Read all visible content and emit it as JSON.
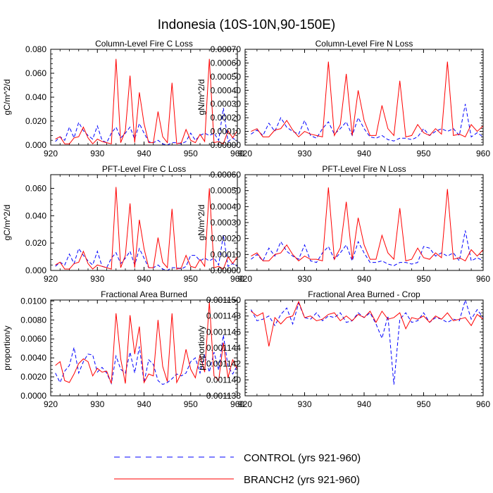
{
  "title": "Indonesia (10S-10N,90-150E)",
  "legend": [
    {
      "label": "CONTROL (yrs 921-960)",
      "color": "#0000ff",
      "style": "dashed"
    },
    {
      "label": "BRANCH2 (yrs 921-960)",
      "color": "#ff0000",
      "style": "solid"
    }
  ],
  "chart_data": [
    {
      "type": "line",
      "title": "Column-Level Fire C Loss",
      "xlabel": "",
      "ylabel": "gC/m^2/d",
      "xlim": [
        920,
        960
      ],
      "ylim": [
        0,
        0.08
      ],
      "xticks": [
        920,
        930,
        940,
        950,
        960
      ],
      "xtick_labels": [
        "920",
        "930",
        "940",
        "950",
        "960"
      ],
      "yticks": [
        0,
        0.02,
        0.04,
        0.06,
        0.08
      ],
      "ytick_labels": [
        "0.000",
        "0.020",
        "0.040",
        "0.060",
        "0.080"
      ],
      "x": [
        921,
        922,
        923,
        924,
        925,
        926,
        927,
        928,
        929,
        930,
        931,
        932,
        933,
        934,
        935,
        936,
        937,
        938,
        939,
        940,
        941,
        942,
        943,
        944,
        945,
        946,
        947,
        948,
        949,
        950,
        951,
        952,
        953,
        954,
        955,
        956,
        957,
        958,
        959,
        960
      ],
      "series": [
        {
          "name": "CONTROL (yrs 921-960)",
          "color": "#0000ff",
          "dash": true,
          "values": [
            0.003,
            0.007,
            0.004,
            0.015,
            0.006,
            0.019,
            0.012,
            0.008,
            0.005,
            0.016,
            0.004,
            0.002,
            0.01,
            0.015,
            0.006,
            0.01,
            0.015,
            0.005,
            0.018,
            0.01,
            0.003,
            0.002,
            0.004,
            0.001,
            0.0,
            0.002,
            0.002,
            0.001,
            0.003,
            0.01,
            0.004,
            0.008,
            0.01,
            0.008,
            0.01,
            0.004,
            0.031,
            0.003,
            0.006,
            0.003
          ]
        },
        {
          "name": "BRANCH2 (yrs 921-960)",
          "color": "#ff0000",
          "dash": false,
          "values": [
            0.005,
            0.007,
            0.001,
            0.001,
            0.006,
            0.007,
            0.015,
            0.006,
            0.001,
            0.005,
            0.003,
            0.002,
            0.001,
            0.072,
            0.002,
            0.012,
            0.058,
            0.002,
            0.044,
            0.018,
            0.002,
            0.002,
            0.028,
            0.007,
            0.002,
            0.052,
            0.001,
            0.002,
            0.013,
            0.004,
            0.002,
            0.009,
            0.003,
            0.072,
            0.002,
            0.003,
            0.001,
            0.012,
            0.006,
            0.012
          ]
        }
      ]
    },
    {
      "type": "line",
      "title": "Column-Level Fire N Loss",
      "xlabel": "",
      "ylabel": "gN/m^2/d",
      "xlim": [
        920,
        960
      ],
      "ylim": [
        0,
        0.0007
      ],
      "xticks": [
        920,
        930,
        940,
        950,
        960
      ],
      "xtick_labels": [
        "920",
        "930",
        "940",
        "950",
        "960"
      ],
      "yticks": [
        0,
        0.0001,
        0.0002,
        0.0003,
        0.0004,
        0.0005,
        0.0006,
        0.0007
      ],
      "ytick_labels": [
        "0.00000",
        "0.00010",
        "0.00020",
        "0.00030",
        "0.00040",
        "0.00050",
        "0.00060",
        "0.00070"
      ],
      "x": [
        921,
        922,
        923,
        924,
        925,
        926,
        927,
        928,
        929,
        930,
        931,
        932,
        933,
        934,
        935,
        936,
        937,
        938,
        939,
        940,
        941,
        942,
        943,
        944,
        945,
        946,
        947,
        948,
        949,
        950,
        951,
        952,
        953,
        954,
        955,
        956,
        957,
        958,
        959,
        960
      ],
      "series": [
        {
          "name": "CONTROL (yrs 921-960)",
          "color": "#0000ff",
          "dash": true,
          "values": [
            8e-05,
            0.00011,
            7e-05,
            0.00016,
            0.0001,
            0.0002,
            0.00013,
            0.0001,
            8e-05,
            0.00018,
            7e-05,
            5e-05,
            0.00012,
            0.00017,
            8e-05,
            0.00012,
            0.00017,
            7e-05,
            0.0002,
            0.00012,
            6e-05,
            5e-05,
            7e-05,
            4e-05,
            3e-05,
            5e-05,
            5e-05,
            4e-05,
            6e-05,
            0.00012,
            7e-05,
            0.0001,
            0.00012,
            0.0001,
            0.00012,
            7e-05,
            0.0003,
            6e-05,
            9e-05,
            6e-05
          ]
        },
        {
          "name": "BRANCH2 (yrs 921-960)",
          "color": "#ff0000",
          "dash": false,
          "values": [
            0.0001,
            0.00012,
            6e-05,
            6e-05,
            0.00011,
            0.00012,
            0.00018,
            0.00011,
            6e-05,
            0.0001,
            8e-05,
            7e-05,
            6e-05,
            0.00061,
            7e-05,
            0.00015,
            0.00052,
            7e-05,
            0.0004,
            0.00018,
            7e-05,
            7e-05,
            0.00029,
            0.00012,
            7e-05,
            0.00047,
            6e-05,
            7e-05,
            0.00015,
            9e-05,
            7e-05,
            0.00012,
            8e-05,
            0.00061,
            7e-05,
            8e-05,
            6e-05,
            0.00015,
            0.0001,
            0.00014
          ]
        }
      ]
    },
    {
      "type": "line",
      "title": "PFT-Level Fire C Loss",
      "xlabel": "",
      "ylabel": "gC/m^2/d",
      "xlim": [
        920,
        960
      ],
      "ylim": [
        0,
        0.07
      ],
      "xticks": [
        920,
        930,
        940,
        950,
        960
      ],
      "xtick_labels": [
        "920",
        "930",
        "940",
        "950",
        "960"
      ],
      "yticks": [
        0,
        0.02,
        0.04,
        0.06
      ],
      "ytick_labels": [
        "0.000",
        "0.020",
        "0.040",
        "0.060"
      ],
      "x": [
        921,
        922,
        923,
        924,
        925,
        926,
        927,
        928,
        929,
        930,
        931,
        932,
        933,
        934,
        935,
        936,
        937,
        938,
        939,
        940,
        941,
        942,
        943,
        944,
        945,
        946,
        947,
        948,
        949,
        950,
        951,
        952,
        953,
        954,
        955,
        956,
        957,
        958,
        959,
        960
      ],
      "series": [
        {
          "name": "CONTROL (yrs 921-960)",
          "color": "#0000ff",
          "dash": true,
          "values": [
            0.003,
            0.006,
            0.004,
            0.012,
            0.005,
            0.016,
            0.011,
            0.007,
            0.004,
            0.014,
            0.003,
            0.002,
            0.009,
            0.013,
            0.005,
            0.009,
            0.014,
            0.004,
            0.016,
            0.009,
            0.002,
            0.002,
            0.004,
            0.001,
            0.0,
            0.002,
            0.002,
            0.001,
            0.003,
            0.011,
            0.011,
            0.007,
            0.009,
            0.007,
            0.009,
            0.004,
            0.026,
            0.003,
            0.005,
            0.003
          ]
        },
        {
          "name": "BRANCH2 (yrs 921-960)",
          "color": "#ff0000",
          "dash": false,
          "values": [
            0.004,
            0.006,
            0.001,
            0.001,
            0.005,
            0.006,
            0.014,
            0.005,
            0.001,
            0.004,
            0.003,
            0.002,
            0.001,
            0.061,
            0.002,
            0.011,
            0.049,
            0.002,
            0.037,
            0.016,
            0.002,
            0.002,
            0.024,
            0.006,
            0.002,
            0.045,
            0.001,
            0.002,
            0.011,
            0.003,
            0.002,
            0.008,
            0.003,
            0.06,
            0.002,
            0.003,
            0.001,
            0.01,
            0.005,
            0.01
          ]
        }
      ]
    },
    {
      "type": "line",
      "title": "PFT-Level Fire N Loss",
      "xlabel": "",
      "ylabel": "gN/m^2/d",
      "xlim": [
        920,
        960
      ],
      "ylim": [
        0,
        0.0006
      ],
      "xticks": [
        920,
        930,
        940,
        950,
        960
      ],
      "xtick_labels": [
        "920",
        "930",
        "940",
        "950",
        "960"
      ],
      "yticks": [
        0,
        0.0001,
        0.0002,
        0.0003,
        0.0004,
        0.0005,
        0.0006
      ],
      "ytick_labels": [
        "0.00000",
        "0.00010",
        "0.00020",
        "0.00030",
        "0.00040",
        "0.00050",
        "0.00060"
      ],
      "x": [
        921,
        922,
        923,
        924,
        925,
        926,
        927,
        928,
        929,
        930,
        931,
        932,
        933,
        934,
        935,
        936,
        937,
        938,
        939,
        940,
        941,
        942,
        943,
        944,
        945,
        946,
        947,
        948,
        949,
        950,
        951,
        952,
        953,
        954,
        955,
        956,
        957,
        958,
        959,
        960
      ],
      "series": [
        {
          "name": "CONTROL (yrs 921-960)",
          "color": "#0000ff",
          "dash": true,
          "values": [
            7e-05,
            0.0001,
            6e-05,
            0.00014,
            9e-05,
            0.00018,
            0.00012,
            9e-05,
            7e-05,
            0.00016,
            6e-05,
            5e-05,
            0.00011,
            0.00015,
            7e-05,
            0.00011,
            0.00016,
            6e-05,
            0.00018,
            0.00011,
            5e-05,
            5e-05,
            6e-05,
            4e-05,
            3e-05,
            5e-05,
            5e-05,
            4e-05,
            5e-05,
            0.00015,
            0.00014,
            9e-05,
            0.00011,
            9e-05,
            0.00011,
            6e-05,
            0.00025,
            6e-05,
            8e-05,
            6e-05
          ]
        },
        {
          "name": "BRANCH2 (yrs 921-960)",
          "color": "#ff0000",
          "dash": false,
          "values": [
            9e-05,
            0.00011,
            6e-05,
            6e-05,
            0.0001,
            0.00011,
            0.00016,
            0.0001,
            6e-05,
            9e-05,
            7e-05,
            7e-05,
            6e-05,
            0.00052,
            7e-05,
            0.00014,
            0.00043,
            7e-05,
            0.00033,
            0.00016,
            7e-05,
            7e-05,
            0.00022,
            0.00011,
            7e-05,
            0.00039,
            6e-05,
            7e-05,
            0.00014,
            8e-05,
            7e-05,
            0.00011,
            8e-05,
            0.00051,
            7e-05,
            8e-05,
            6e-05,
            0.00013,
            9e-05,
            0.00013
          ]
        }
      ]
    },
    {
      "type": "line",
      "title": "Fractional Area Burned",
      "xlabel": "",
      "ylabel": "proportion/y",
      "xlim": [
        920,
        960
      ],
      "ylim": [
        0,
        0.0101
      ],
      "xticks": [
        920,
        930,
        940,
        950,
        960
      ],
      "xtick_labels": [
        "920",
        "930",
        "940",
        "950",
        "960"
      ],
      "yticks": [
        0,
        0.002,
        0.004,
        0.006,
        0.008,
        0.01
      ],
      "ytick_labels": [
        "0.0000",
        "0.0020",
        "0.0040",
        "0.0060",
        "0.0080",
        "0.0100"
      ],
      "x": [
        921,
        922,
        923,
        924,
        925,
        926,
        927,
        928,
        929,
        930,
        931,
        932,
        933,
        934,
        935,
        936,
        937,
        938,
        939,
        940,
        941,
        942,
        943,
        944,
        945,
        946,
        947,
        948,
        949,
        950,
        951,
        952,
        953,
        954,
        955,
        956,
        957,
        958,
        959,
        960
      ],
      "series": [
        {
          "name": "CONTROL (yrs 921-960)",
          "color": "#0000ff",
          "dash": true,
          "values": [
            0.0024,
            0.0014,
            0.0026,
            0.0032,
            0.0051,
            0.0024,
            0.0036,
            0.0044,
            0.0043,
            0.0025,
            0.003,
            0.0024,
            0.0013,
            0.0042,
            0.0028,
            0.0024,
            0.0046,
            0.0024,
            0.0052,
            0.0014,
            0.0038,
            0.0033,
            0.0016,
            0.0012,
            0.0014,
            0.0018,
            0.0023,
            0.0021,
            0.0024,
            0.0036,
            0.004,
            0.0024,
            0.0043,
            0.0025,
            0.0046,
            0.0027,
            0.0064,
            0.0031,
            0.0023,
            0.0032
          ]
        },
        {
          "name": "BRANCH2 (yrs 921-960)",
          "color": "#ff0000",
          "dash": false,
          "values": [
            0.0032,
            0.0036,
            0.0016,
            0.0014,
            0.0023,
            0.0034,
            0.0039,
            0.0036,
            0.0021,
            0.0029,
            0.0025,
            0.0026,
            0.0013,
            0.0087,
            0.0039,
            0.0013,
            0.0085,
            0.0044,
            0.0073,
            0.0014,
            0.0023,
            0.0021,
            0.008,
            0.0031,
            0.0015,
            0.0087,
            0.0014,
            0.0024,
            0.0049,
            0.0028,
            0.0019,
            0.0043,
            0.0025,
            0.0099,
            0.0021,
            0.0016,
            0.0056,
            0.0019,
            0.0038,
            0.0028
          ]
        }
      ]
    },
    {
      "type": "line",
      "title": "Fractional Area Burned - Crop",
      "xlabel": "",
      "ylabel": "proportion/y",
      "xlim": [
        920,
        960
      ],
      "ylim": [
        0.001138,
        0.00115
      ],
      "xticks": [
        920,
        930,
        940,
        950,
        960
      ],
      "xtick_labels": [
        "920",
        "930",
        "940",
        "950",
        "960"
      ],
      "yticks": [
        0.001138,
        0.00114,
        0.001142,
        0.001144,
        0.001146,
        0.001148,
        0.00115
      ],
      "ytick_labels": [
        "0.001138",
        "0.001140",
        "0.001142",
        "0.001144",
        "0.001146",
        "0.001148",
        "0.001150"
      ],
      "x": [
        921,
        922,
        923,
        924,
        925,
        926,
        927,
        928,
        929,
        930,
        931,
        932,
        933,
        934,
        935,
        936,
        937,
        938,
        939,
        940,
        941,
        942,
        943,
        944,
        945,
        946,
        947,
        948,
        949,
        950,
        951,
        952,
        953,
        954,
        955,
        956,
        957,
        958,
        959,
        960
      ],
      "series": [
        {
          "name": "CONTROL (yrs 921-960)",
          "color": "#0000ff",
          "dash": true,
          "values": [
            0.0011488,
            0.0011474,
            0.0011476,
            0.001148,
            0.0011468,
            0.0011482,
            0.001149,
            0.001147,
            0.0011496,
            0.0011478,
            0.0011476,
            0.0011484,
            0.0011474,
            0.001148,
            0.0011478,
            0.0011484,
            0.0011472,
            0.0011474,
            0.0011484,
            0.0011478,
            0.0011484,
            0.001147,
            0.0011452,
            0.001148,
            0.0011394,
            0.0011476,
            0.0011484,
            0.0011472,
            0.0011474,
            0.0011484,
            0.0011472,
            0.0011478,
            0.0011476,
            0.0011472,
            0.0011476,
            0.0011474,
            0.00115,
            0.0011476,
            0.0011488,
            0.0011478
          ]
        },
        {
          "name": "BRANCH2 (yrs 921-960)",
          "color": "#ff0000",
          "dash": false,
          "values": [
            0.0011486,
            0.001148,
            0.0011484,
            0.0011442,
            0.0011478,
            0.001147,
            0.0011478,
            0.001148,
            0.0011498,
            0.0011478,
            0.001148,
            0.0011474,
            0.0011476,
            0.0011482,
            0.0011484,
            0.0011474,
            0.001148,
            0.0011474,
            0.0011482,
            0.0011478,
            0.0011486,
            0.0011472,
            0.0011486,
            0.0011476,
            0.0011478,
            0.0011484,
            0.0011464,
            0.0011478,
            0.0011476,
            0.001148,
            0.0011472,
            0.001148,
            0.0011476,
            0.0011484,
            0.0011474,
            0.0011476,
            0.0011478,
            0.0011468,
            0.0011482,
            0.0011476
          ]
        }
      ]
    }
  ]
}
